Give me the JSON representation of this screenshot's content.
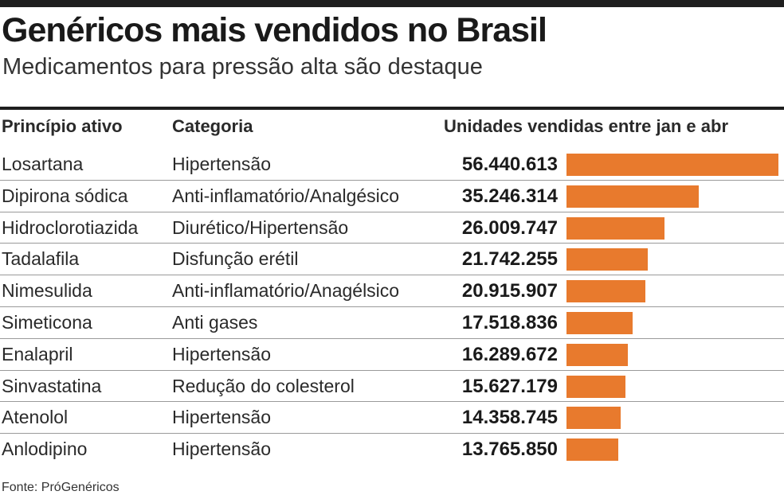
{
  "header": {
    "title": "Genéricos mais vendidos no Brasil",
    "subtitle": "Medicamentos para pressão alta são destaque"
  },
  "columns": {
    "principio": "Princípio ativo",
    "categoria": "Categoria",
    "unidades": "Unidades vendidas entre jan e abr"
  },
  "rows": [
    {
      "principio": "Losartana",
      "categoria": "Hipertensão",
      "value_label": "56.440.613"
    },
    {
      "principio": "Dipirona sódica",
      "categoria": "Anti-inflamatório/Analgésico",
      "value_label": "35.246.314"
    },
    {
      "principio": "Hidroclorotiazida",
      "categoria": "Diurético/Hipertensão",
      "value_label": "26.009.747"
    },
    {
      "principio": "Tadalafila",
      "categoria": "Disfunção erétil",
      "value_label": "21.742.255"
    },
    {
      "principio": "Nimesulida",
      "categoria": "Anti-inflamatório/Anagélsico",
      "value_label": "20.915.907"
    },
    {
      "principio": "Simeticona",
      "categoria": "Anti gases",
      "value_label": "17.518.836"
    },
    {
      "principio": "Enalapril",
      "categoria": "Hipertensão",
      "value_label": "16.289.672"
    },
    {
      "principio": "Sinvastatina",
      "categoria": "Redução do colesterol",
      "value_label": "15.627.179"
    },
    {
      "principio": "Atenolol",
      "categoria": "Hipertensão",
      "value_label": "14.358.745"
    },
    {
      "principio": "Anlodipino",
      "categoria": "Hipertensão",
      "value_label": "13.765.850"
    }
  ],
  "source": "Fonte: PróGenéricos",
  "colors": {
    "bar": "#e87a2d"
  },
  "chart_data": {
    "type": "bar",
    "orientation": "horizontal",
    "title": "Genéricos mais vendidos no Brasil",
    "subtitle": "Medicamentos para pressão alta são destaque",
    "xlabel": "Unidades vendidas entre jan e abr",
    "ylabel": "",
    "categories": [
      "Losartana",
      "Dipirona sódica",
      "Hidroclorotiazida",
      "Tadalafila",
      "Nimesulida",
      "Simeticona",
      "Enalapril",
      "Sinvastatina",
      "Atenolol",
      "Anlodipino"
    ],
    "values": [
      56440613,
      35246314,
      26009747,
      21742255,
      20915907,
      17518836,
      16289672,
      15627179,
      14358745,
      13765850
    ],
    "xlim": [
      0,
      56440613
    ]
  }
}
